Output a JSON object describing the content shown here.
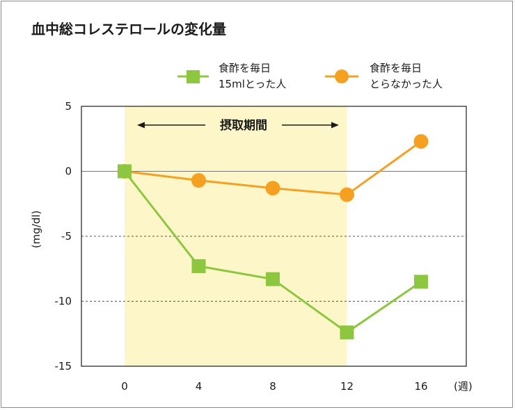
{
  "chart_data": {
    "type": "line",
    "title": "血中総コレステロールの変化量",
    "ylabel": "(mg/dl)",
    "xunit": "(週)",
    "x": [
      0,
      4,
      8,
      12,
      16
    ],
    "xticks": [
      "0",
      "4",
      "8",
      "12",
      "16"
    ],
    "ylim": [
      -15,
      5
    ],
    "yticks": [
      "5",
      "0",
      "-5",
      "-10",
      "-15"
    ],
    "yticks_values": [
      5,
      0,
      -5,
      -10,
      -15
    ],
    "dashed_gridlines": [
      -5,
      -10
    ],
    "zero_line": 0,
    "shaded_period": {
      "label": "摂取期間",
      "x_range": [
        0,
        12
      ],
      "color": "#fdf6c8"
    },
    "series": [
      {
        "name_lines": [
          "食酢を毎日",
          "15mlとった人"
        ],
        "marker": "square",
        "color": "#8dc63f",
        "values": [
          0,
          -7.3,
          -8.3,
          -12.4,
          -8.5
        ]
      },
      {
        "name_lines": [
          "食酢を毎日",
          "とらなかった人"
        ],
        "marker": "circle",
        "color": "#f5a020",
        "values": [
          0,
          -0.7,
          -1.3,
          -1.8,
          2.3
        ]
      }
    ],
    "legend_position": "top-right",
    "grid": false
  }
}
